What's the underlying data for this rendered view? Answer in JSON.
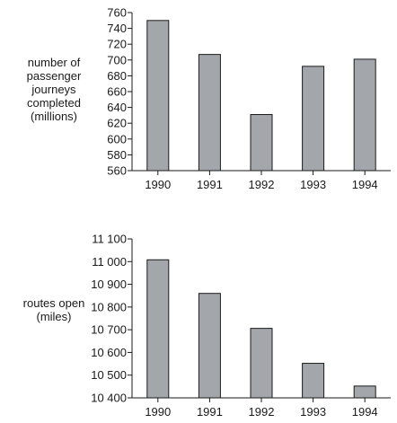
{
  "chart_data": [
    {
      "type": "bar",
      "ylabel_lines": [
        "number of",
        "passenger",
        "journeys",
        "completed",
        "(millions)"
      ],
      "categories": [
        "1990",
        "1991",
        "1992",
        "1993",
        "1994"
      ],
      "values": [
        750,
        707,
        631,
        692,
        701
      ],
      "ylim": [
        560,
        760
      ],
      "yticks": [
        560,
        580,
        600,
        620,
        640,
        660,
        680,
        700,
        720,
        740,
        760
      ],
      "ytick_labels": [
        "560",
        "580",
        "600",
        "620",
        "640",
        "660",
        "680",
        "700",
        "720",
        "740",
        "760"
      ],
      "grid": false,
      "bar_color": "#a3a7ab"
    },
    {
      "type": "bar",
      "ylabel_lines": [
        "routes open",
        "(miles)"
      ],
      "categories": [
        "1990",
        "1991",
        "1992",
        "1993",
        "1994"
      ],
      "values": [
        11008,
        10860,
        10706,
        10552,
        10452
      ],
      "ylim": [
        10400,
        11100
      ],
      "yticks": [
        10400,
        10500,
        10600,
        10700,
        10800,
        10900,
        11000,
        11100
      ],
      "ytick_labels": [
        "10 400",
        "10 500",
        "10 600",
        "10 700",
        "10 800",
        "10 900",
        "11 000",
        "11 100"
      ],
      "grid": false,
      "bar_color": "#a3a7ab"
    }
  ]
}
